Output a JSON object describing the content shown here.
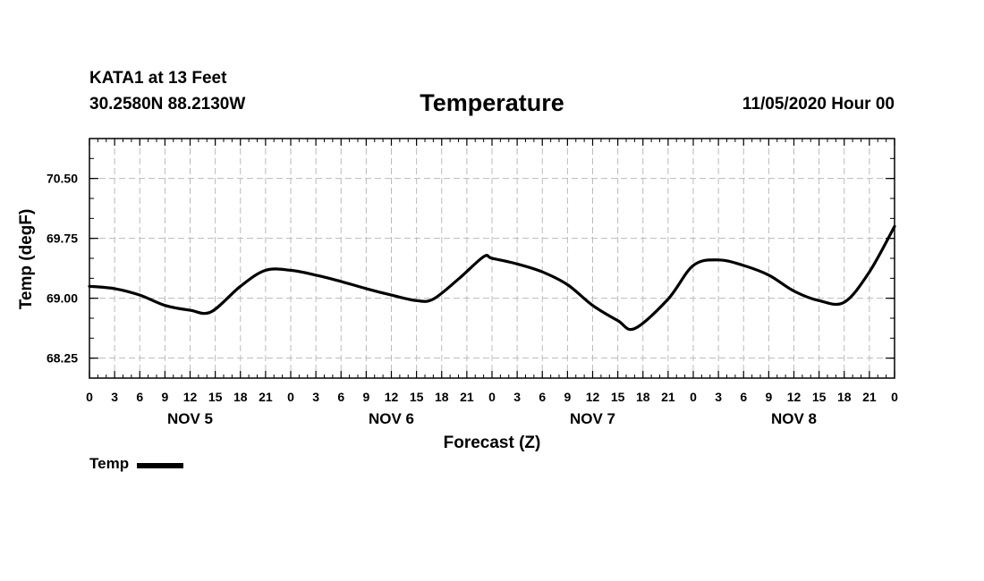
{
  "header": {
    "station": "KATA1 at 13 Feet",
    "coords": "30.2580N 88.2130W",
    "title": "Temperature",
    "run_time": "11/05/2020 Hour 00"
  },
  "legend": {
    "label": "Temp"
  },
  "chart_data": {
    "type": "line",
    "title": "Temperature",
    "xlabel": "Forecast (Z)",
    "ylabel": "Temp (degF)",
    "xlim": [
      0,
      96
    ],
    "ylim": [
      68.0,
      71.0
    ],
    "y_ticks": [
      68.25,
      69.0,
      69.75,
      70.5
    ],
    "y_tick_labels": [
      "68.25",
      "69.00",
      "69.75",
      "70.50"
    ],
    "y_minor_step": 0.25,
    "x_tick_step_hours": 3,
    "x_tick_labels": [
      "0",
      "3",
      "6",
      "9",
      "12",
      "15",
      "18",
      "21",
      "0",
      "3",
      "6",
      "9",
      "12",
      "15",
      "18",
      "21",
      "0",
      "3",
      "6",
      "9",
      "12",
      "15",
      "18",
      "21",
      "0",
      "3",
      "6",
      "9",
      "12",
      "15",
      "18",
      "21",
      "0"
    ],
    "day_labels": [
      {
        "label": "NOV 5",
        "hour": 12
      },
      {
        "label": "NOV 6",
        "hour": 36
      },
      {
        "label": "NOV 7",
        "hour": 60
      },
      {
        "label": "NOV 8",
        "hour": 84
      }
    ],
    "grid": true,
    "legend_position": "bottom-left",
    "series": [
      {
        "name": "Temp",
        "color": "#000000",
        "x": [
          0,
          3,
          6,
          9,
          12,
          14.5,
          18,
          21,
          24,
          27,
          30,
          33,
          36,
          39,
          41,
          44,
          47,
          48,
          51,
          54,
          57,
          60,
          63,
          65,
          69,
          72,
          75,
          78,
          81,
          84,
          87,
          90,
          93,
          96
        ],
        "y": [
          69.15,
          69.12,
          69.04,
          68.91,
          68.85,
          68.83,
          69.15,
          69.35,
          69.35,
          69.29,
          69.21,
          69.12,
          69.04,
          68.97,
          68.99,
          69.24,
          69.52,
          69.5,
          69.43,
          69.33,
          69.17,
          68.91,
          68.72,
          68.62,
          68.99,
          69.41,
          69.48,
          69.41,
          69.29,
          69.09,
          68.97,
          68.95,
          69.33,
          69.9
        ]
      }
    ]
  }
}
